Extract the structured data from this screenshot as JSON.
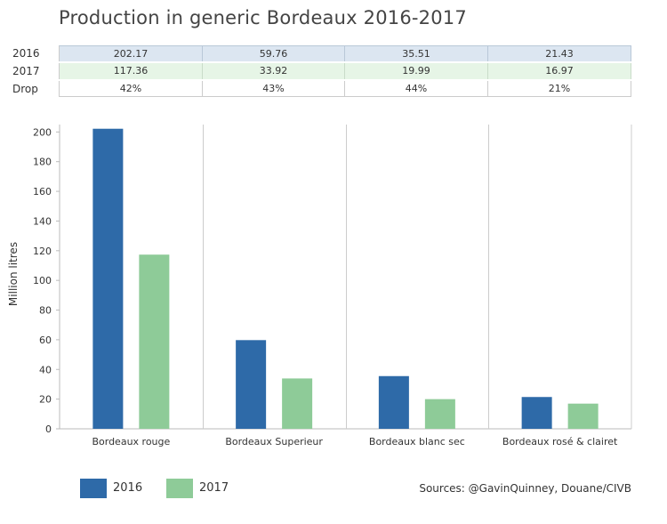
{
  "title": "Production in generic Bordeaux 2016-2017",
  "table": {
    "rows": [
      {
        "label": "2016",
        "cells": [
          "202.17",
          "59.76",
          "35.51",
          "21.43"
        ]
      },
      {
        "label": "2017",
        "cells": [
          "117.36",
          "33.92",
          "19.99",
          "16.97"
        ]
      },
      {
        "label": "Drop",
        "cells": [
          "42%",
          "43%",
          "44%",
          "21%"
        ]
      }
    ]
  },
  "chart_data": {
    "type": "bar",
    "title": "Production in generic Bordeaux 2016-2017",
    "xlabel": "",
    "ylabel": "Million litres",
    "categories": [
      "Bordeaux rouge",
      "Bordeaux Superieur",
      "Bordeaux blanc sec",
      "Bordeaux rosé & clairet"
    ],
    "series": [
      {
        "name": "2016",
        "values": [
          202.17,
          59.76,
          35.51,
          21.43
        ],
        "color": "#2e6aa8"
      },
      {
        "name": "2017",
        "values": [
          117.36,
          33.92,
          19.99,
          16.97
        ],
        "color": "#8ecb98"
      }
    ],
    "ylim": [
      0,
      205
    ],
    "yticks": [
      0,
      20,
      40,
      60,
      80,
      100,
      120,
      140,
      160,
      180,
      200
    ],
    "grid": true,
    "legend_position": "bottom-left"
  },
  "source": "Sources: @GavinQuinney, Douane/CIVB"
}
